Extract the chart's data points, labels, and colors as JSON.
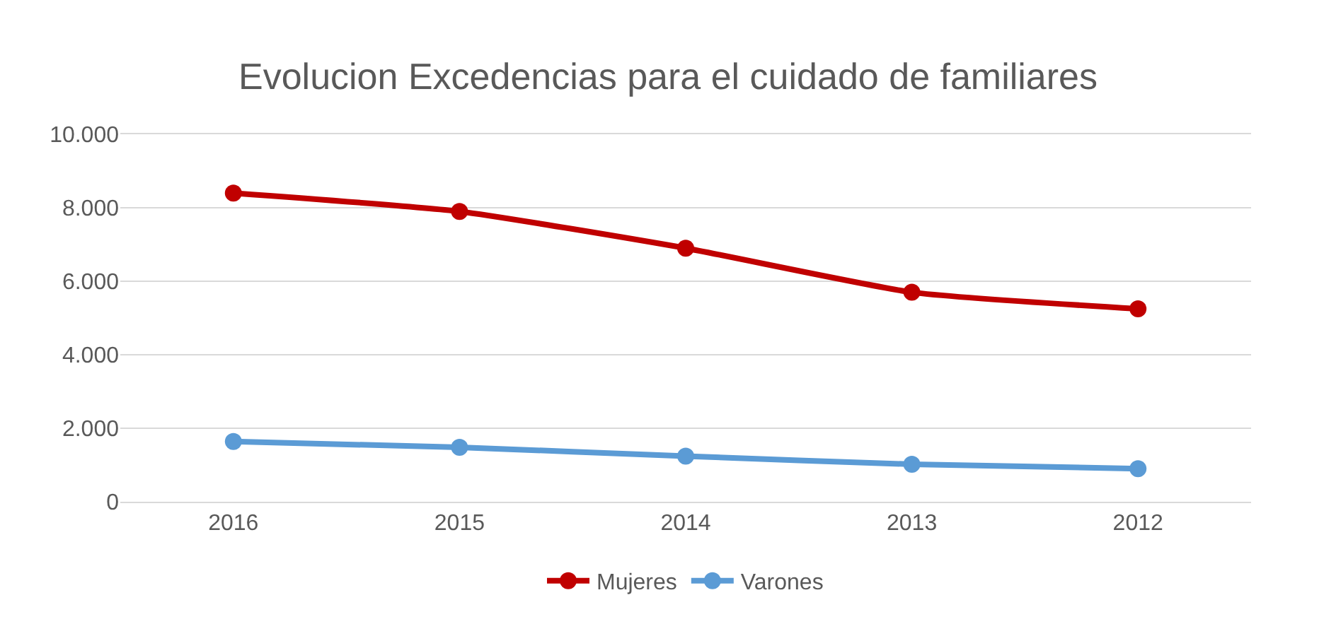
{
  "chart_data": {
    "type": "line",
    "title": "Evolucion Excedencias para el cuidado de familiares",
    "categories": [
      "2016",
      "2015",
      "2014",
      "2013",
      "2012"
    ],
    "series": [
      {
        "name": "Mujeres",
        "color": "#c00000",
        "values": [
          8400,
          7900,
          6900,
          5700,
          5250
        ]
      },
      {
        "name": "Varones",
        "color": "#5b9bd5",
        "values": [
          1640,
          1480,
          1240,
          1020,
          900
        ]
      }
    ],
    "ylim": [
      0,
      10000
    ],
    "yticks": [
      {
        "value": 0,
        "label": "0"
      },
      {
        "value": 2000,
        "label": "2.000"
      },
      {
        "value": 4000,
        "label": "4.000"
      },
      {
        "value": 6000,
        "label": "6.000"
      },
      {
        "value": 8000,
        "label": "8.000"
      },
      {
        "value": 10000,
        "label": "10.000"
      }
    ],
    "grid": "y",
    "legend": "bottom",
    "marker": "circle",
    "line_style": "solid"
  }
}
